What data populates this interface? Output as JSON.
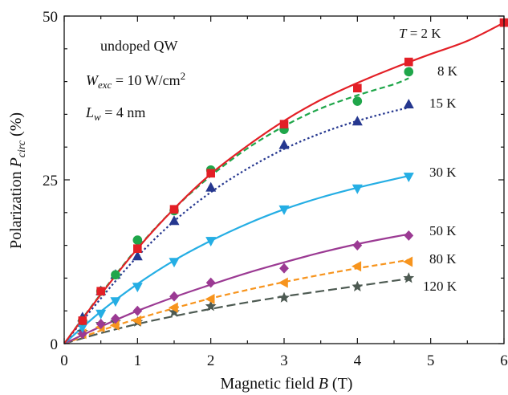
{
  "colors": {
    "2K": "#e31f26",
    "8K": "#1fa64a",
    "15K": "#25378f",
    "30K": "#25aee4",
    "50K": "#9b3a93",
    "80K": "#f7941d",
    "120K": "#4d5a52"
  },
  "chart_data": {
    "type": "scatter",
    "xlabel_main": "Magnetic field ",
    "xlabel_var": "B",
    "xlabel_unit": " (T)",
    "ylabel_main": "Polarization ",
    "ylabel_var": "P",
    "ylabel_sub": "circ",
    "ylabel_unit": "  (%)",
    "xlim": [
      0,
      6
    ],
    "ylim": [
      0,
      50
    ],
    "x_ticks": [
      0,
      1,
      2,
      3,
      4,
      5,
      6
    ],
    "y_ticks": [
      0,
      25,
      50
    ],
    "annotations": {
      "sample": "undoped QW",
      "wexc_sym": "W",
      "wexc_sub": "exc",
      "wexc_val": " = 10 W/cm",
      "wexc_sup": "2",
      "lw_sym": "L",
      "lw_sub": "w",
      "lw_val": " = 4 nm"
    },
    "series": [
      {
        "name": "T  = 2 K",
        "color_key": "2K",
        "marker": "square",
        "line": "solid",
        "x": [
          0.25,
          0.5,
          1.0,
          1.5,
          2.0,
          3.0,
          4.0,
          4.7,
          6.0
        ],
        "y": [
          3.5,
          8.0,
          14.5,
          20.5,
          26.0,
          33.5,
          39.0,
          43.0,
          49.0
        ],
        "fit": [
          [
            0,
            0
          ],
          [
            0.5,
            7.5
          ],
          [
            1,
            14.5
          ],
          [
            1.5,
            20.6
          ],
          [
            2,
            25.9
          ],
          [
            2.5,
            30.2
          ],
          [
            3,
            34.0
          ],
          [
            3.5,
            37.2
          ],
          [
            4,
            39.8
          ],
          [
            4.5,
            42.1
          ],
          [
            5,
            44.2
          ],
          [
            5.5,
            46.2
          ],
          [
            6,
            49.0
          ]
        ]
      },
      {
        "name": "8 K",
        "color_key": "8K",
        "marker": "circle",
        "line": "dashed",
        "x": [
          0.25,
          0.5,
          0.7,
          1.0,
          1.5,
          2.0,
          3.0,
          4.0,
          4.7
        ],
        "y": [
          3.5,
          8.0,
          10.5,
          15.8,
          20.3,
          26.5,
          32.7,
          37.0,
          41.5
        ],
        "fit": [
          [
            0,
            0
          ],
          [
            0.5,
            7.6
          ],
          [
            1,
            14.6
          ],
          [
            1.5,
            20.6
          ],
          [
            2,
            25.6
          ],
          [
            2.5,
            29.8
          ],
          [
            3,
            33.2
          ],
          [
            3.5,
            35.9
          ],
          [
            4,
            37.9
          ],
          [
            4.5,
            39.6
          ],
          [
            4.7,
            40.5
          ]
        ]
      },
      {
        "name": "15 K",
        "color_key": "15K",
        "marker": "triangle-up",
        "line": "dotted",
        "x": [
          0.25,
          0.5,
          0.7,
          1.0,
          1.5,
          2.0,
          3.0,
          4.0,
          4.7
        ],
        "y": [
          4.0,
          8.0,
          10.5,
          13.3,
          18.7,
          23.8,
          30.3,
          33.9,
          36.5
        ],
        "fit": [
          [
            0,
            0
          ],
          [
            0.5,
            6.9
          ],
          [
            1,
            13.3
          ],
          [
            1.5,
            18.7
          ],
          [
            2,
            23.1
          ],
          [
            2.5,
            26.7
          ],
          [
            3,
            29.7
          ],
          [
            3.5,
            32.1
          ],
          [
            4,
            34.0
          ],
          [
            4.5,
            35.5
          ],
          [
            4.7,
            36.0
          ]
        ]
      },
      {
        "name": "30 K",
        "color_key": "30K",
        "marker": "triangle-down",
        "line": "solid",
        "x": [
          0.25,
          0.5,
          0.7,
          1.0,
          1.5,
          2.0,
          3.0,
          4.0,
          4.7
        ],
        "y": [
          2.5,
          4.6,
          6.5,
          8.7,
          12.5,
          15.7,
          20.5,
          23.7,
          25.5
        ],
        "fit": [
          [
            0,
            0
          ],
          [
            0.5,
            4.9
          ],
          [
            1,
            9.1
          ],
          [
            1.5,
            12.7
          ],
          [
            2,
            15.7
          ],
          [
            2.5,
            18.3
          ],
          [
            3,
            20.5
          ],
          [
            3.5,
            22.3
          ],
          [
            4,
            23.8
          ],
          [
            4.5,
            25.1
          ],
          [
            4.7,
            25.6
          ]
        ]
      },
      {
        "name": "50 K",
        "color_key": "50K",
        "marker": "diamond",
        "line": "solid",
        "x": [
          0.25,
          0.5,
          0.7,
          1.0,
          1.5,
          2.0,
          3.0,
          4.0,
          4.7
        ],
        "y": [
          1.5,
          3.0,
          3.8,
          5.0,
          7.2,
          9.3,
          11.5,
          15.0,
          16.5
        ],
        "fit": [
          [
            0,
            0
          ],
          [
            0.5,
            2.6
          ],
          [
            1,
            5.0
          ],
          [
            1.5,
            7.1
          ],
          [
            2,
            9.0
          ],
          [
            2.5,
            10.8
          ],
          [
            3,
            12.4
          ],
          [
            3.5,
            13.9
          ],
          [
            4,
            15.2
          ],
          [
            4.5,
            16.3
          ],
          [
            4.7,
            16.7
          ]
        ]
      },
      {
        "name": "80 K",
        "color_key": "80K",
        "marker": "triangle-left",
        "line": "dashed",
        "x": [
          0.25,
          0.5,
          0.7,
          1.0,
          1.5,
          2.0,
          3.0,
          4.0,
          4.7
        ],
        "y": [
          1.5,
          2.5,
          2.8,
          3.5,
          5.5,
          6.8,
          9.3,
          11.8,
          12.5
        ],
        "fit": [
          [
            0,
            0
          ],
          [
            0.5,
            2.0
          ],
          [
            1,
            3.8
          ],
          [
            1.5,
            5.4
          ],
          [
            2,
            6.9
          ],
          [
            2.5,
            8.2
          ],
          [
            3,
            9.4
          ],
          [
            3.5,
            10.5
          ],
          [
            4,
            11.5
          ],
          [
            4.5,
            12.4
          ],
          [
            4.7,
            12.8
          ]
        ]
      },
      {
        "name": "120 K",
        "color_key": "120K",
        "marker": "star",
        "line": "longdash",
        "x": [
          0.25,
          0.5,
          0.7,
          1.0,
          1.5,
          2.0,
          3.0,
          4.0,
          4.7
        ],
        "y": [
          1.8,
          3.0,
          3.3,
          3.3,
          4.8,
          5.7,
          7.0,
          8.7,
          10.0
        ],
        "fit": [
          [
            0,
            0
          ],
          [
            0.5,
            1.6
          ],
          [
            1,
            3.0
          ],
          [
            1.5,
            4.2
          ],
          [
            2,
            5.3
          ],
          [
            2.5,
            6.3
          ],
          [
            3,
            7.2
          ],
          [
            3.5,
            8.0
          ],
          [
            4,
            8.8
          ],
          [
            4.5,
            9.6
          ],
          [
            4.7,
            9.9
          ]
        ]
      }
    ]
  }
}
